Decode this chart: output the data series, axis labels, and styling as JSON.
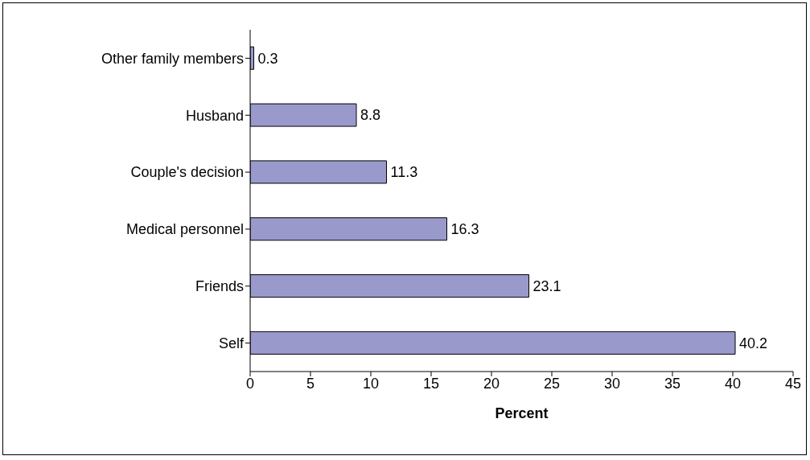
{
  "chart_data": {
    "type": "bar",
    "orientation": "horizontal",
    "xlabel": "Percent",
    "categories": [
      "Other family members",
      "Husband",
      "Couple's decision",
      "Medical personnel",
      "Friends",
      "Self"
    ],
    "values": [
      0.3,
      8.8,
      11.3,
      16.3,
      23.1,
      40.2
    ],
    "color": "#9999cc",
    "xlim": [
      0,
      45
    ],
    "xticks": [
      0,
      5,
      10,
      15,
      20,
      25,
      30,
      35,
      40,
      45
    ],
    "data_labels": true
  }
}
